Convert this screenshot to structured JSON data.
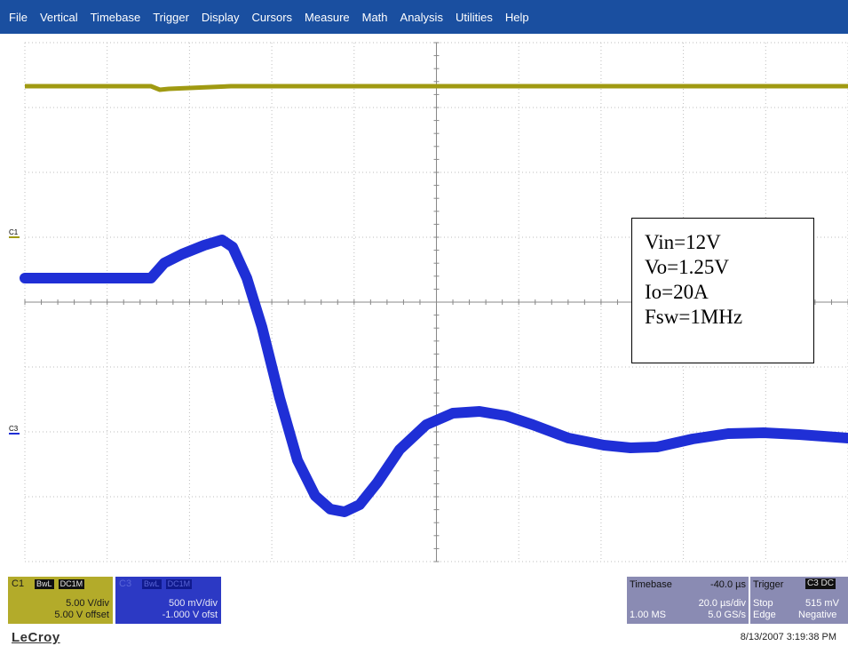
{
  "menu": [
    "File",
    "Vertical",
    "Timebase",
    "Trigger",
    "Display",
    "Cursors",
    "Measure",
    "Math",
    "Analysis",
    "Utilities",
    "Help"
  ],
  "markers": {
    "c1": "C1",
    "c3": "C3"
  },
  "annotation": [
    "Vin=12V",
    "Vo=1.25V",
    "Io=20A",
    "Fsw=1MHz"
  ],
  "c1_panel": {
    "tag": "C1",
    "chips": [
      "BwL",
      "DC1M"
    ],
    "vdiv": "5.00 V/div",
    "offset": "5.00 V offset",
    "color": "#b3ab2a"
  },
  "c3_panel": {
    "tag": "C3",
    "chips": [
      "BwL",
      "DC1M"
    ],
    "vdiv": "500 mV/div",
    "offset": "-1.000 V ofst",
    "color": "#2c39c4"
  },
  "timebase": {
    "label": "Timebase",
    "delay": "-40.0 µs",
    "tdiv": "20.0 µs/div",
    "samples": "1.00 MS",
    "rate": "5.0 GS/s"
  },
  "trigger": {
    "label": "Trigger",
    "chip": "C3 DC",
    "mode": "Stop",
    "level": "515 mV",
    "type": "Edge",
    "slope": "Negative"
  },
  "brand": "LeCroy",
  "timestamp": "8/13/2007 3:19:38 PM",
  "traces": {
    "c1_color": "#a09a12",
    "c3_color": "#1f2fd6",
    "grid_color": "#bdbdbd"
  }
}
